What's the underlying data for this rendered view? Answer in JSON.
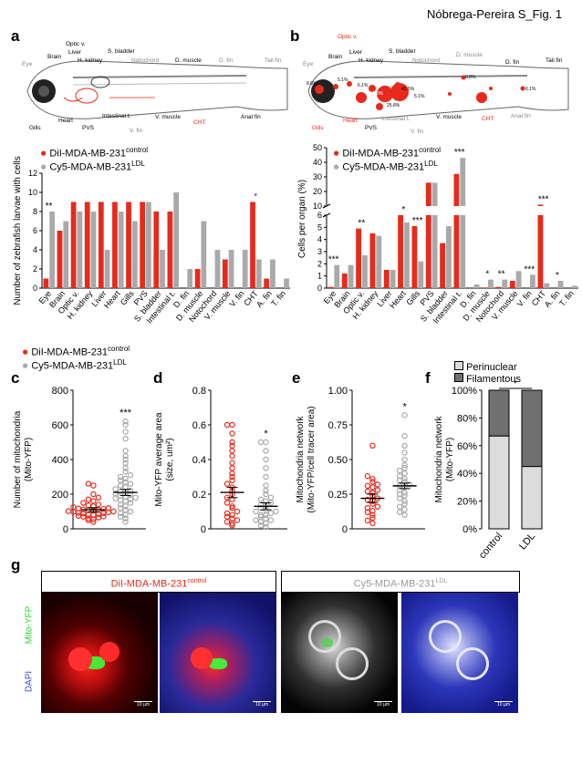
{
  "header": {
    "figure_title": "Nóbrega-Pereira S_Fig. 1"
  },
  "panels": {
    "a": "a",
    "b": "b",
    "c": "c",
    "d": "d",
    "e": "e",
    "f": "f",
    "g": "g"
  },
  "colors": {
    "control": "#e8291b",
    "ldl": "#a9a9a9",
    "perinuclear": "#dcdcdc",
    "filamentous": "#707070",
    "label_red": "#e8291b",
    "label_gray": "#9a9a9a"
  },
  "fish_labels_a": [
    "Eye",
    "Brain",
    "Optic v.",
    "Liver",
    "H. kidney",
    "S. bladder",
    "Notochord",
    "D. muscle",
    "D. fin",
    "Tail fin",
    "Gills",
    "Heart",
    "PVS",
    "Intestinal t.",
    "V. fin",
    "V. muscle",
    "CHT",
    "Anal fin"
  ],
  "fish_labels_b": [
    "Eye",
    "Brain",
    "Optic v.",
    "Liver",
    "H. kidney",
    "S. bladder",
    "Notochord",
    "D. muscle",
    "D. fin",
    "Tail fin",
    "Gills",
    "Heart",
    "PVS",
    "Intestinal t.",
    "V. fin",
    "V. muscle",
    "CHT",
    "Anal fin"
  ],
  "fish_percent_labels": [
    "8.6%",
    "5.1%",
    "6.1%",
    "12.9%",
    "25.8%",
    "42.5%",
    "5.1%",
    "0.8%",
    "6.1%"
  ],
  "legend": {
    "control_base": "DiI-MDA-MB-231",
    "control_sup": "control",
    "ldl_base": "Cy5-MDA-MB-231",
    "ldl_sup": "LDL"
  },
  "panel_f_legend": [
    "Perinuclear",
    "Filamentous"
  ],
  "panel_g": {
    "control_title_base": "DiI-MDA-MB-231",
    "control_title_sup": "control",
    "ldl_title_base": "Cy5-MDA-MB-231",
    "ldl_title_sup": "LDL",
    "side_label_top": "Mito-YFP",
    "side_label_bottom": "DAPI",
    "scale_label": "10 µm"
  },
  "chart_data": [
    {
      "panel": "a",
      "type": "bar",
      "ylabel": "Number of zebrafish larvae with cells",
      "ylim": [
        0,
        12
      ],
      "categories": [
        "Eye",
        "Brain",
        "Optic v.",
        "H. kidney",
        "Liver",
        "Heart",
        "Gills",
        "PVS",
        "S. bladder",
        "Intestinal t.",
        "D. fin",
        "D. muscle",
        "Notochord",
        "V. muscle",
        "V. fin",
        "CHT",
        "A. fin",
        "T. fin"
      ],
      "series": [
        {
          "name": "DiI-MDA-MB-231control",
          "values": [
            1,
            6,
            9,
            9,
            9,
            9,
            9,
            9,
            8,
            8,
            0,
            2,
            0,
            3,
            0,
            9,
            1,
            0
          ]
        },
        {
          "name": "Cy5-MDA-MB-231LDL",
          "values": [
            8,
            7,
            8,
            8,
            4,
            8,
            7,
            9,
            4,
            10,
            2,
            7,
            4,
            4,
            4,
            3,
            3,
            1
          ]
        }
      ],
      "annotations": [
        {
          "category": "Eye",
          "text": "**"
        },
        {
          "category": "CHT",
          "text": "*"
        }
      ]
    },
    {
      "panel": "b",
      "type": "bar",
      "ylabel": "Cells per organ (%)",
      "ylim": [
        0,
        50
      ],
      "categories": [
        "Eye",
        "Brain",
        "Optic v.",
        "H. kidney",
        "Liver",
        "Heart",
        "Gills",
        "PVS",
        "S. bladder",
        "Intestinal t.",
        "D. fin",
        "D. muscle",
        "Notochord",
        "V. muscle",
        "V. fin",
        "CHT",
        "A. fin",
        "T. fin"
      ],
      "series": [
        {
          "name": "DiI-MDA-MB-231control",
          "values": [
            0.1,
            1.2,
            4.9,
            4.5,
            1.5,
            6.1,
            5.1,
            26,
            3.7,
            32,
            0,
            0.05,
            0.1,
            0.6,
            0,
            11,
            0,
            0
          ]
        },
        {
          "name": "Cy5-MDA-MB-231LDL",
          "values": [
            1.9,
            1.9,
            2.7,
            4.3,
            1.5,
            5.4,
            2.2,
            26,
            5.1,
            43,
            0.3,
            0.7,
            0.7,
            1.4,
            1.1,
            0.4,
            0.6,
            0.2
          ]
        }
      ],
      "annotations": [
        {
          "category": "Eye",
          "text": "***"
        },
        {
          "category": "Optic v.",
          "text": "**"
        },
        {
          "category": "Heart",
          "text": "*"
        },
        {
          "category": "Gills",
          "text": "***"
        },
        {
          "category": "Intestinal t.",
          "text": "***"
        },
        {
          "category": "D. muscle",
          "text": "*"
        },
        {
          "category": "Notochord",
          "text": "**"
        },
        {
          "category": "V. fin",
          "text": "***"
        },
        {
          "category": "CHT",
          "text": "***"
        },
        {
          "category": "A. fin",
          "text": "*"
        }
      ]
    },
    {
      "panel": "c",
      "type": "scatter",
      "ylabel_line1": "Number of mitochondria",
      "ylabel_line2": "(Mito-YFP)",
      "ylim": [
        0,
        800
      ],
      "yticks": [
        "0",
        "200",
        "400",
        "600",
        "800"
      ],
      "groups": [
        {
          "name": "control",
          "mean": 110,
          "sem": 12,
          "values": [
            40,
            50,
            55,
            60,
            65,
            70,
            72,
            75,
            80,
            82,
            85,
            88,
            90,
            92,
            95,
            98,
            100,
            102,
            105,
            108,
            110,
            112,
            115,
            118,
            120,
            125,
            130,
            135,
            140,
            150,
            160,
            170,
            180,
            200,
            250,
            260
          ]
        },
        {
          "name": "LDL",
          "mean": 210,
          "sem": 18,
          "values": [
            40,
            60,
            70,
            80,
            90,
            100,
            110,
            120,
            130,
            140,
            150,
            160,
            165,
            170,
            175,
            180,
            185,
            190,
            200,
            205,
            210,
            215,
            220,
            230,
            240,
            250,
            260,
            270,
            280,
            290,
            300,
            310,
            330,
            350,
            380,
            400,
            420,
            450,
            520,
            560,
            600,
            620
          ]
        }
      ],
      "significance": "***"
    },
    {
      "panel": "d",
      "type": "scatter",
      "ylabel_line1": "Mito-YFP average area",
      "ylabel_line2": "(size, um²)",
      "ylim": [
        0,
        0.8
      ],
      "yticks": [
        "0",
        "0.2",
        "0.4",
        "0.6",
        "0.8"
      ],
      "groups": [
        {
          "name": "control",
          "mean": 0.21,
          "sem": 0.03,
          "values": [
            0.02,
            0.03,
            0.04,
            0.05,
            0.06,
            0.07,
            0.08,
            0.09,
            0.1,
            0.12,
            0.13,
            0.15,
            0.17,
            0.18,
            0.2,
            0.22,
            0.24,
            0.26,
            0.28,
            0.3,
            0.32,
            0.35,
            0.38,
            0.42,
            0.45,
            0.48,
            0.5,
            0.55,
            0.6,
            0.6
          ]
        },
        {
          "name": "LDL",
          "mean": 0.13,
          "sem": 0.02,
          "values": [
            0.01,
            0.02,
            0.03,
            0.04,
            0.05,
            0.05,
            0.06,
            0.07,
            0.08,
            0.08,
            0.09,
            0.1,
            0.1,
            0.11,
            0.12,
            0.13,
            0.14,
            0.15,
            0.16,
            0.17,
            0.18,
            0.2,
            0.22,
            0.25,
            0.3,
            0.35,
            0.4,
            0.45,
            0.5,
            0.5
          ]
        }
      ],
      "significance": "*"
    },
    {
      "panel": "e",
      "type": "scatter",
      "ylabel_line1": "Mitochondria network",
      "ylabel_line2": "(Mito-YFP/cell tracer area)",
      "ylim": [
        0,
        1.0
      ],
      "yticks": [
        "0",
        "0.25",
        "0.50",
        "0.75",
        "1.00"
      ],
      "groups": [
        {
          "name": "control",
          "mean": 0.22,
          "sem": 0.03,
          "values": [
            0.04,
            0.06,
            0.08,
            0.1,
            0.12,
            0.13,
            0.15,
            0.16,
            0.18,
            0.2,
            0.21,
            0.22,
            0.24,
            0.26,
            0.27,
            0.28,
            0.3,
            0.31,
            0.32,
            0.34,
            0.36,
            0.38,
            0.6
          ]
        },
        {
          "name": "LDL",
          "mean": 0.31,
          "sem": 0.02,
          "values": [
            0.1,
            0.12,
            0.14,
            0.16,
            0.18,
            0.2,
            0.22,
            0.24,
            0.25,
            0.26,
            0.28,
            0.3,
            0.31,
            0.32,
            0.34,
            0.35,
            0.36,
            0.38,
            0.4,
            0.42,
            0.44,
            0.46,
            0.5,
            0.55,
            0.6,
            0.67,
            0.82
          ]
        }
      ],
      "significance": "*"
    },
    {
      "panel": "f",
      "type": "bar",
      "ylabel_line1": "Mitochondria network",
      "ylabel_line2": "(Mito-YFP)",
      "yticks": [
        "0%",
        "20%",
        "40%",
        "60%",
        "80%",
        "100%"
      ],
      "categories": [
        "control",
        "LDL"
      ],
      "series": [
        {
          "name": "Perinuclear",
          "values": [
            67,
            45
          ]
        },
        {
          "name": "Filamentous",
          "values": [
            33,
            55
          ]
        }
      ],
      "significance": "*"
    }
  ]
}
